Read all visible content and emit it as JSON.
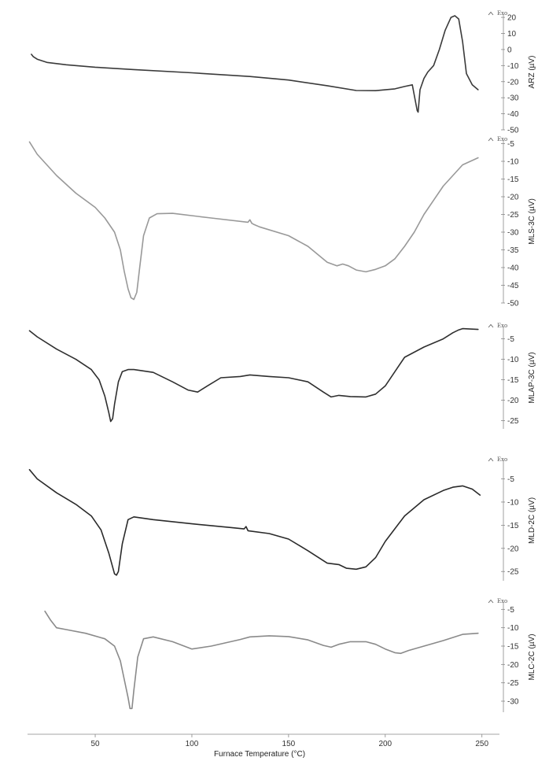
{
  "x_axis": {
    "label": "Furnace Temperature (°C)",
    "ticks": [
      50,
      100,
      150,
      200,
      250
    ],
    "range": [
      15,
      255
    ]
  },
  "exo_label": "Exo",
  "chart_data": [
    {
      "type": "line",
      "ylabel": "ARZ (µV)",
      "yticks": [
        20,
        10,
        0,
        -10,
        -20,
        -30,
        -40,
        -50
      ],
      "ylim": [
        -50,
        22
      ],
      "color": "#3a3a3a",
      "x": [
        17,
        18,
        20,
        25,
        35,
        50,
        70,
        100,
        130,
        150,
        170,
        185,
        195,
        205,
        210,
        214,
        216.5,
        217,
        218,
        220,
        222,
        225,
        228,
        231,
        234,
        236,
        238,
        240,
        242,
        245,
        248
      ],
      "values": [
        -3,
        -4.5,
        -6,
        -8,
        -9.5,
        -11,
        -12.5,
        -14.5,
        -16.8,
        -19,
        -22.5,
        -25.5,
        -25.6,
        -24.5,
        -23,
        -22,
        -38,
        -39,
        -25,
        -18,
        -14,
        -10,
        0,
        12,
        20,
        21,
        19,
        5,
        -15,
        -22,
        -25
      ]
    },
    {
      "type": "line",
      "ylabel": "MLS-3C (µV)",
      "yticks": [
        -5,
        -10,
        -15,
        -20,
        -25,
        -30,
        -35,
        -40,
        -45,
        -50
      ],
      "ylim": [
        -50,
        -4
      ],
      "color": "#999999",
      "x": [
        16,
        20,
        30,
        40,
        50,
        55,
        60,
        63,
        65,
        67,
        68.5,
        70,
        71.5,
        73,
        75,
        78,
        82,
        90,
        110,
        129,
        130,
        131,
        132,
        135,
        150,
        160,
        170,
        175,
        178,
        181,
        185,
        190,
        195,
        200,
        205,
        210,
        215,
        220,
        230,
        240,
        248
      ],
      "values": [
        -4.5,
        -8,
        -14,
        -19,
        -23,
        -26,
        -30,
        -35,
        -41,
        -46,
        -48.5,
        -49,
        -47,
        -40,
        -31,
        -26,
        -24.8,
        -24.7,
        -26,
        -27.2,
        -26.5,
        -27.5,
        -27.8,
        -28.5,
        -31,
        -34,
        -38.5,
        -39.5,
        -39,
        -39.5,
        -40.7,
        -41.2,
        -40.5,
        -39.5,
        -37.5,
        -34,
        -30,
        -25,
        -17,
        -11,
        -9
      ]
    },
    {
      "type": "line",
      "ylabel": "MLAP-3C (µV)",
      "yticks": [
        -5,
        -10,
        -15,
        -20,
        -25
      ],
      "ylim": [
        -27,
        -2
      ],
      "color": "#2f2f2f",
      "x": [
        16,
        20,
        30,
        40,
        48,
        52,
        55,
        57,
        58,
        59,
        60,
        62,
        64,
        67,
        70,
        80,
        90,
        98,
        103,
        108,
        115,
        125,
        130,
        140,
        150,
        160,
        168,
        172,
        176,
        182,
        190,
        195,
        200,
        205,
        210,
        220,
        230,
        235,
        238,
        240,
        248
      ],
      "values": [
        -3,
        -4.5,
        -7.5,
        -10,
        -12.5,
        -15,
        -19,
        -23,
        -25.2,
        -24.5,
        -21,
        -15.5,
        -13,
        -12.5,
        -12.5,
        -13.2,
        -15.5,
        -17.5,
        -18,
        -16.5,
        -14.5,
        -14.2,
        -13.8,
        -14.2,
        -14.5,
        -15.5,
        -18,
        -19.2,
        -18.8,
        -19.1,
        -19.2,
        -18.5,
        -16.5,
        -13,
        -9.5,
        -7,
        -5,
        -3.5,
        -2.8,
        -2.5,
        -2.7
      ]
    },
    {
      "type": "line",
      "ylabel": "MLD-2C (µV)",
      "yticks": [
        -5,
        -10,
        -15,
        -20,
        -25
      ],
      "ylim": [
        -27,
        -1
      ],
      "color": "#2a2a2a",
      "x": [
        16,
        20,
        30,
        40,
        48,
        53,
        57,
        60,
        61,
        62,
        64,
        67,
        70,
        80,
        100,
        120,
        127,
        128,
        129,
        140,
        150,
        160,
        170,
        176,
        180,
        185,
        190,
        195,
        200,
        210,
        220,
        230,
        235,
        240,
        245,
        249
      ],
      "values": [
        -3,
        -5,
        -8,
        -10.5,
        -13,
        -16,
        -21,
        -25.5,
        -25.8,
        -25,
        -19,
        -13.8,
        -13.2,
        -13.8,
        -14.7,
        -15.5,
        -15.8,
        -15.3,
        -16.2,
        -16.8,
        -18,
        -20.5,
        -23.2,
        -23.5,
        -24.3,
        -24.5,
        -24,
        -22,
        -18.5,
        -13,
        -9.5,
        -7.5,
        -6.8,
        -6.5,
        -7.2,
        -8.5
      ]
    },
    {
      "type": "line",
      "ylabel": "MLC-2C (µV)",
      "yticks": [
        -5,
        -10,
        -15,
        -20,
        -25,
        -30
      ],
      "ylim": [
        -33,
        -3
      ],
      "color": "#8a8a8a",
      "x": [
        24,
        27,
        30,
        35,
        45,
        55,
        60,
        63,
        65,
        67,
        68,
        69,
        70,
        72,
        75,
        80,
        90,
        100,
        110,
        125,
        130,
        140,
        150,
        160,
        168,
        172,
        176,
        182,
        190,
        195,
        200,
        205,
        208,
        212,
        220,
        230,
        240,
        248
      ],
      "values": [
        -5.5,
        -8,
        -10,
        -10.5,
        -11.5,
        -13,
        -15,
        -19,
        -24,
        -29,
        -32,
        -32,
        -27,
        -18,
        -13,
        -12.5,
        -13.8,
        -15.8,
        -15,
        -13.2,
        -12.5,
        -12.2,
        -12.4,
        -13.3,
        -14.8,
        -15.3,
        -14.5,
        -13.8,
        -13.8,
        -14.5,
        -15.8,
        -16.8,
        -17,
        -16.2,
        -15,
        -13.5,
        -11.8,
        -11.5
      ]
    }
  ]
}
